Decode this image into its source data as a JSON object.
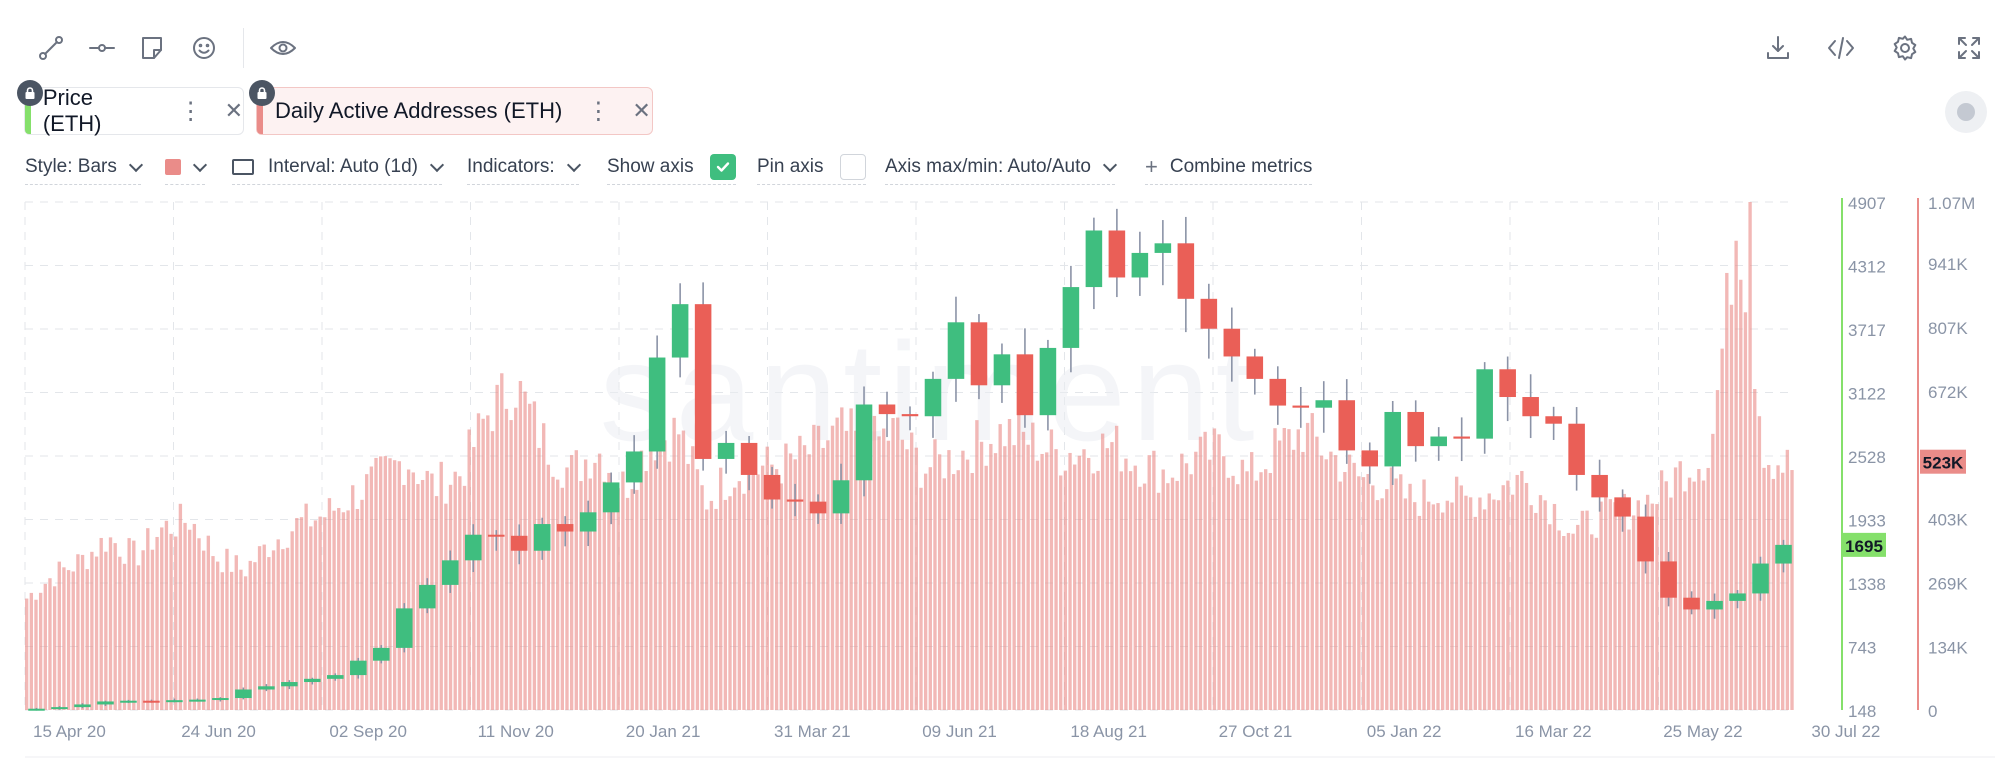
{
  "toolbar": {
    "left_icons": [
      "line-tool-icon",
      "horizontal-line-tool-icon",
      "note-tool-icon",
      "emoji-tool-icon",
      "eye-icon"
    ],
    "right_icons": [
      "download-icon",
      "embed-code-icon",
      "settings-icon",
      "fullscreen-icon"
    ]
  },
  "metrics": [
    {
      "label": "Price (ETH)",
      "color": "#85e06b",
      "locked": true
    },
    {
      "label": "Daily Active Addresses (ETH)",
      "color": "#ea8c89",
      "locked": true
    }
  ],
  "controls": {
    "style": "Style: Bars",
    "interval": "Interval: Auto (1d)",
    "indicators": "Indicators:",
    "show_axis": "Show axis",
    "show_axis_checked": true,
    "pin_axis": "Pin axis",
    "pin_axis_checked": false,
    "axis_maxmin": "Axis max/min: Auto/Auto",
    "combine": "Combine metrics",
    "combine_symbol": "+"
  },
  "watermark": "santiment",
  "chart_data": {
    "type": "candlestick+bar",
    "x_tick_labels": [
      "15 Apr 20",
      "24 Jun 20",
      "02 Sep 20",
      "11 Nov 20",
      "20 Jan 21",
      "31 Mar 21",
      "09 Jun 21",
      "18 Aug 21",
      "27 Oct 21",
      "05 Jan 22",
      "16 Mar 22",
      "25 May 22",
      "30 Jul 22"
    ],
    "price_axis": {
      "ticks": [
        "148",
        "743",
        "1338",
        "1933",
        "2528",
        "3122",
        "3717",
        "4312",
        "4907"
      ],
      "range": [
        148,
        4907
      ],
      "last_value": "1695",
      "color": "#3fbe7f"
    },
    "activity_axis": {
      "ticks": [
        "0",
        "134K",
        "269K",
        "403K",
        "523K",
        "672K",
        "807K",
        "941K",
        "1.07M"
      ],
      "range": [
        0,
        1070000
      ],
      "last_value": "523K",
      "color": "#ea8c89"
    },
    "price_close_series": [
      160,
      175,
      200,
      228,
      235,
      230,
      240,
      245,
      260,
      340,
      370,
      410,
      440,
      475,
      610,
      730,
      1100,
      1320,
      1550,
      1790,
      1780,
      1640,
      1890,
      1820,
      2000,
      2280,
      2570,
      3450,
      3950,
      2500,
      2650,
      2350,
      2120,
      2100,
      1990,
      2300,
      3010,
      2920,
      2900,
      3250,
      3780,
      3190,
      3480,
      2910,
      3540,
      4110,
      4640,
      4200,
      4430,
      4520,
      4000,
      3720,
      3460,
      3250,
      3000,
      2980,
      3050,
      2580,
      2430,
      2940,
      2620,
      2710,
      2690,
      3340,
      3080,
      2900,
      2830,
      2350,
      2140,
      1960,
      1540,
      1200,
      1090,
      1170,
      1240,
      1520,
      1695
    ],
    "active_addresses_series": [
      240000,
      290000,
      320000,
      370000,
      330000,
      390000,
      410000,
      330000,
      300000,
      360000,
      400000,
      420000,
      460000,
      500000,
      540000,
      480000,
      510000,
      640000,
      700000,
      580000,
      510000,
      560000,
      480000,
      580000,
      600000,
      450000,
      510000,
      520000,
      530000,
      560000,
      600000,
      570000,
      600000,
      520000,
      540000,
      570000,
      600000,
      580000,
      550000,
      560000,
      570000,
      530000,
      510000,
      540000,
      560000,
      500000,
      560000,
      600000,
      550000,
      500000,
      490000,
      450000,
      470000,
      450000,
      470000,
      500000,
      450000,
      380000,
      420000,
      430000,
      460000,
      520000,
      550000,
      1070000,
      550000,
      520000
    ]
  }
}
